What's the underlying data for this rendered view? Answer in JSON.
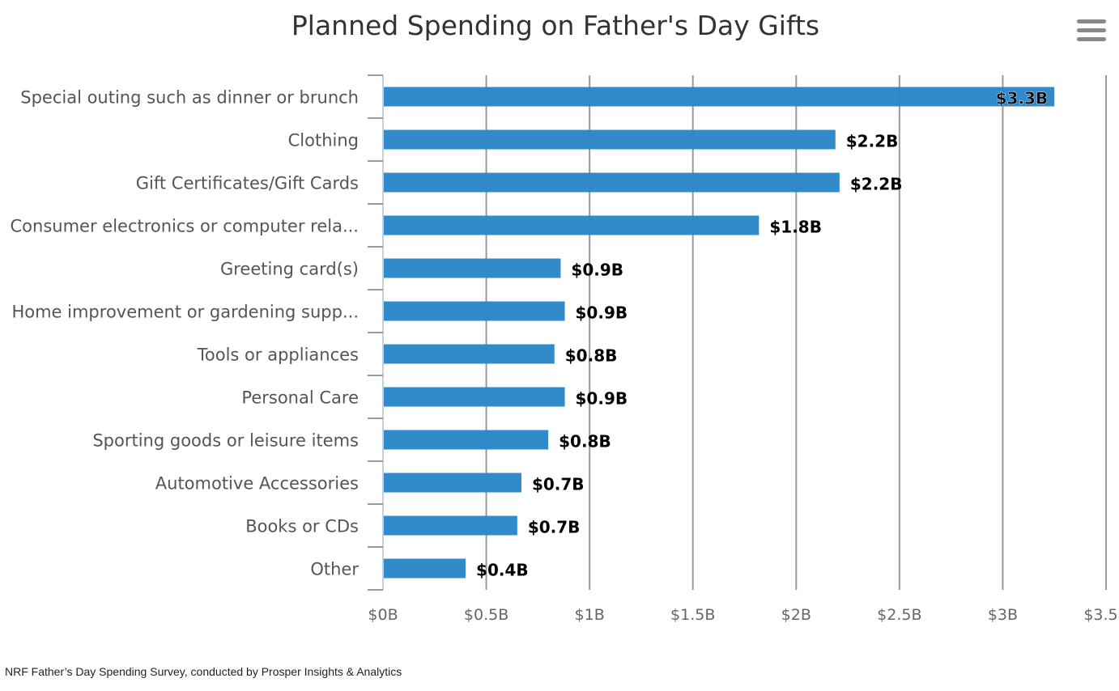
{
  "menu": {
    "icon": "hamburger-menu-icon"
  },
  "source_note": "NRF Father’s Day Spending Survey, conducted by Prosper Insights & Analytics",
  "colors": {
    "bar": "#2a87c8",
    "grid": "#999999",
    "axis_line": "#c0d0e0",
    "label_text": "#555555",
    "data_label": "#000000"
  },
  "chart_data": {
    "type": "bar",
    "orientation": "horizontal",
    "title": "Planned Spending on Father's Day Gifts",
    "xlabel": "",
    "ylabel": "",
    "xlim": [
      0,
      3.5
    ],
    "x_ticks": [
      0,
      0.5,
      1,
      1.5,
      2,
      2.5,
      3,
      3.5
    ],
    "x_tick_labels": [
      "$0B",
      "$0.5B",
      "$1B",
      "$1.5B",
      "$2B",
      "$2.5B",
      "$3B",
      "$3.5B"
    ],
    "grid": true,
    "legend": "none",
    "categories": [
      "Special outing such as dinner or brunch",
      "Clothing",
      "Gift Certificates/Gift Cards",
      "Consumer electronics or computer rela...",
      "Greeting card(s)",
      "Home improvement or gardening supp...",
      "Tools or appliances",
      "Personal Care",
      "Sporting goods or leisure items",
      "Automotive Accessories",
      "Books or CDs",
      "Other"
    ],
    "values": [
      3.25,
      2.19,
      2.21,
      1.82,
      0.86,
      0.88,
      0.83,
      0.88,
      0.8,
      0.67,
      0.65,
      0.4
    ],
    "data_labels": [
      "$3.3B",
      "$2.2B",
      "$2.2B",
      "$1.8B",
      "$0.9B",
      "$0.9B",
      "$0.8B",
      "$0.9B",
      "$0.8B",
      "$0.7B",
      "$0.7B",
      "$0.4B"
    ]
  }
}
